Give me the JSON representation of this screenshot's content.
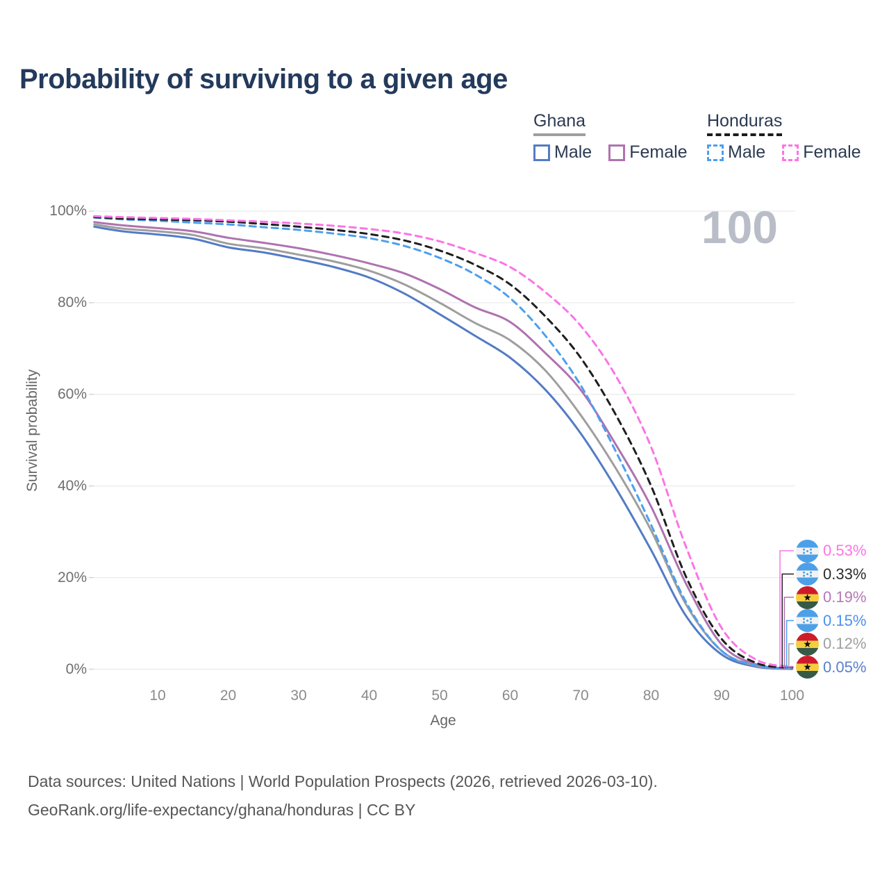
{
  "title": "Probability of surviving to a given age",
  "watermark_age": "100",
  "legend": {
    "groups": [
      {
        "label": "Ghana",
        "line_style": "solid",
        "line_color": "#9e9e9e",
        "items": [
          {
            "label": "Male",
            "color": "#527BC6",
            "style": "solid"
          },
          {
            "label": "Female",
            "color": "#AF72B0",
            "style": "solid"
          }
        ]
      },
      {
        "label": "Honduras",
        "line_style": "dashed",
        "line_color": "#1c1c1c",
        "items": [
          {
            "label": "Male",
            "color": "#4C9FF0",
            "style": "dashed"
          },
          {
            "label": "Female",
            "color": "#FC74E6",
            "style": "dashed"
          }
        ]
      }
    ]
  },
  "chart_data": {
    "type": "line",
    "title": "Probability of surviving to a given age",
    "xlabel": "Age",
    "ylabel": "Survival probability",
    "xlim": [
      0,
      100
    ],
    "ylim": [
      0,
      100
    ],
    "x_ticks": [
      10,
      20,
      30,
      40,
      50,
      60,
      70,
      80,
      90,
      100
    ],
    "y_ticks": [
      {
        "value": 0,
        "label": "0%"
      },
      {
        "value": 20,
        "label": "20%"
      },
      {
        "value": 40,
        "label": "40%"
      },
      {
        "value": 60,
        "label": "60%"
      },
      {
        "value": 80,
        "label": "80%"
      },
      {
        "value": 100,
        "label": "100%"
      }
    ],
    "grid": "horizontal-only",
    "legend_position": "top-right",
    "hover_age_indicator": "100",
    "ages": [
      1,
      5,
      10,
      15,
      20,
      25,
      30,
      35,
      40,
      45,
      50,
      55,
      60,
      65,
      70,
      75,
      80,
      85,
      90,
      95,
      100
    ],
    "series": [
      {
        "name": "Ghana Male",
        "country": "Ghana",
        "sex": "male",
        "color": "#527BC6",
        "dash": "solid",
        "values": [
          96.6,
          95.6,
          94.9,
          94.0,
          92.1,
          91.0,
          89.5,
          87.8,
          85.5,
          82.0,
          77.5,
          72.8,
          68.0,
          61.0,
          51.5,
          39.5,
          26.0,
          11.5,
          3.2,
          0.5,
          0.05
        ]
      },
      {
        "name": "Ghana",
        "country": "Ghana",
        "sex": "both",
        "color": "#9e9e9e",
        "dash": "solid",
        "values": [
          97.1,
          96.2,
          95.6,
          94.8,
          92.9,
          91.9,
          90.5,
          89.0,
          87.0,
          84.0,
          80.0,
          75.6,
          71.8,
          65.2,
          55.5,
          43.8,
          30.3,
          14.0,
          4.0,
          0.7,
          0.12
        ]
      },
      {
        "name": "Ghana Female",
        "country": "Ghana",
        "sex": "female",
        "color": "#AF72B0",
        "dash": "solid",
        "values": [
          97.6,
          96.9,
          96.3,
          95.6,
          94.2,
          93.1,
          91.9,
          90.4,
          88.6,
          86.4,
          83.0,
          79.0,
          75.8,
          69.0,
          61.0,
          49.0,
          35.5,
          18.5,
          5.4,
          1.0,
          0.19
        ]
      },
      {
        "name": "Honduras Male",
        "country": "Honduras",
        "sex": "male",
        "color": "#4C9FF0",
        "dash": "dashed",
        "values": [
          98.6,
          98.2,
          97.9,
          97.5,
          97.1,
          96.5,
          95.9,
          95.1,
          94.1,
          92.4,
          89.8,
          86.2,
          81.0,
          72.8,
          62.0,
          47.5,
          31.5,
          14.5,
          4.0,
          0.8,
          0.15
        ]
      },
      {
        "name": "Honduras",
        "country": "Honduras",
        "sex": "both",
        "color": "#1f1f1f",
        "dash": "dashed",
        "values": [
          98.7,
          98.4,
          98.2,
          98.0,
          97.7,
          97.2,
          96.6,
          95.9,
          95.0,
          93.6,
          91.4,
          88.3,
          84.0,
          77.0,
          68.0,
          55.5,
          40.0,
          20.0,
          6.6,
          1.3,
          0.33
        ]
      },
      {
        "name": "Honduras Female",
        "country": "Honduras",
        "sex": "female",
        "color": "#FC74E6",
        "dash": "dashed",
        "values": [
          98.9,
          98.7,
          98.5,
          98.3,
          98.0,
          97.7,
          97.3,
          96.8,
          96.1,
          95.1,
          93.4,
          90.9,
          87.8,
          82.3,
          75.0,
          64.0,
          48.5,
          26.5,
          9.0,
          2.0,
          0.53
        ]
      }
    ],
    "end_labels": [
      {
        "text": "0.53%",
        "color": "#FC74E6",
        "flag": "honduras",
        "series": "Honduras Female"
      },
      {
        "text": "0.33%",
        "color": "#2b2b2b",
        "flag": "honduras",
        "series": "Honduras"
      },
      {
        "text": "0.19%",
        "color": "#B678B4",
        "flag": "ghana",
        "series": "Ghana Female"
      },
      {
        "text": "0.15%",
        "color": "#4A90F0",
        "flag": "honduras",
        "series": "Honduras Male"
      },
      {
        "text": "0.12%",
        "color": "#9e9e9e",
        "flag": "ghana",
        "series": "Ghana"
      },
      {
        "text": "0.05%",
        "color": "#5A7FC9",
        "flag": "ghana",
        "series": "Ghana Male"
      }
    ]
  },
  "footer": {
    "line1": "Data sources: United Nations | World Population Prospects (2026, retrieved 2026-03-10).",
    "line2": "GeoRank.org/life-expectancy/ghana/honduras | CC BY"
  }
}
